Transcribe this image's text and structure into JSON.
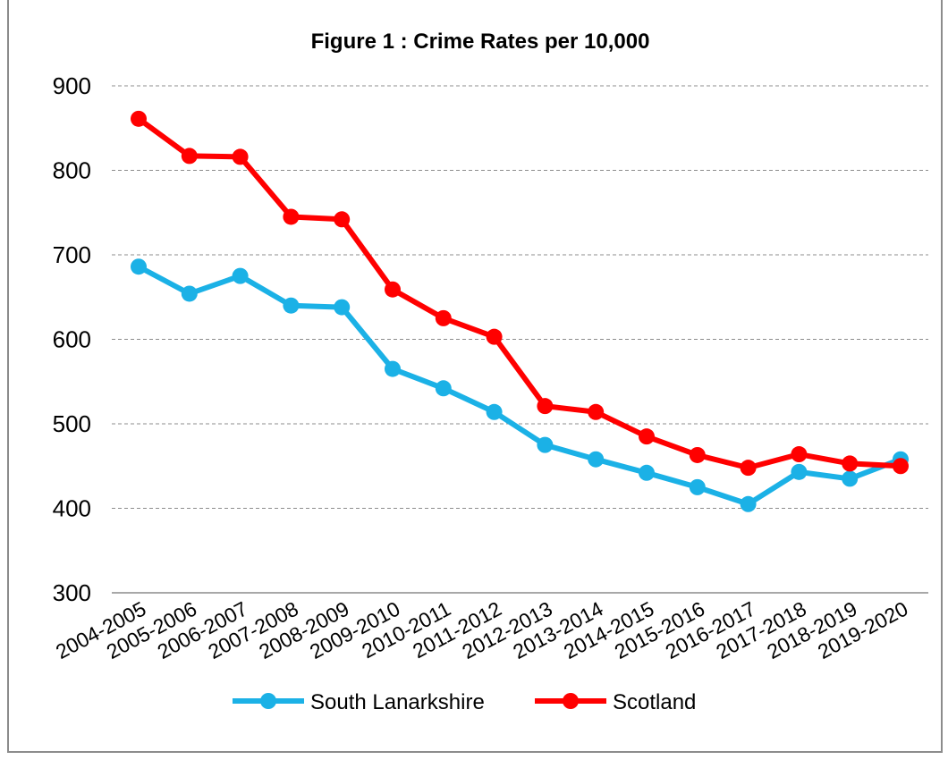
{
  "chart_data": {
    "type": "line",
    "title": "Figure 1 : Crime Rates per 10,000",
    "xlabel": "",
    "ylabel": "",
    "ylim": [
      300,
      900
    ],
    "yticks": [
      300,
      400,
      500,
      600,
      700,
      800,
      900
    ],
    "grid": "horizontal dashed",
    "legend_position": "bottom",
    "x": [
      "2004-2005",
      "2005-2006",
      "2006-2007",
      "2007-2008",
      "2008-2009",
      "2009-2010",
      "2010-2011",
      "2011-2012",
      "2012-2013",
      "2013-2014",
      "2014-2015",
      "2015-2016",
      "2016-2017",
      "2017-2018",
      "2018-2019",
      "2019-2020"
    ],
    "series": [
      {
        "name": "South Lanarkshire",
        "color": "#1BB1E6",
        "values": [
          686,
          654,
          675,
          640,
          638,
          565,
          542,
          514,
          475,
          458,
          442,
          425,
          405,
          443,
          435,
          458
        ]
      },
      {
        "name": "Scotland",
        "color": "#FF0000",
        "values": [
          861,
          817,
          816,
          745,
          742,
          659,
          625,
          603,
          521,
          514,
          485,
          463,
          448,
          464,
          453,
          450
        ]
      }
    ]
  }
}
